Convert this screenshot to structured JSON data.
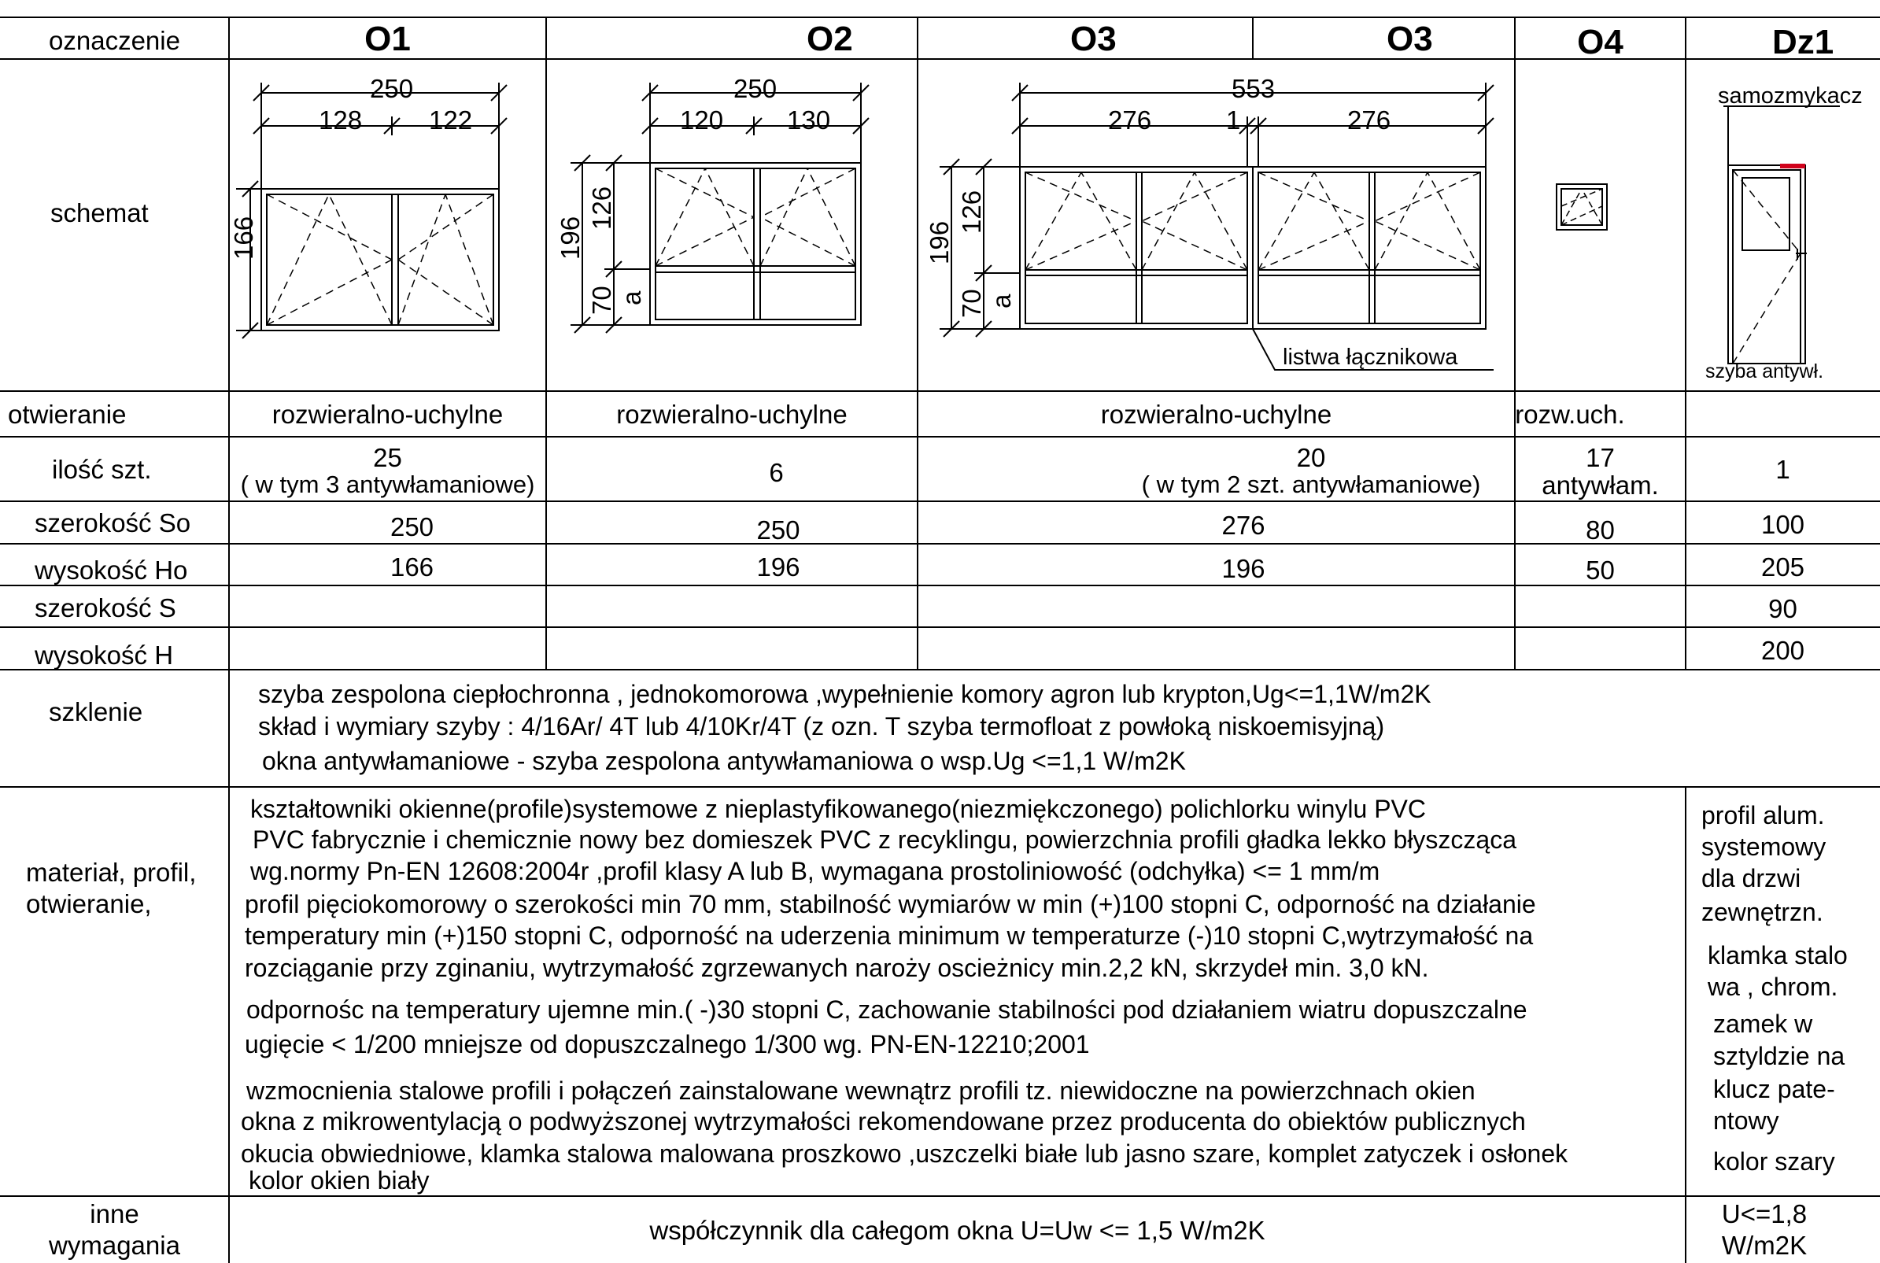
{
  "row_labels": {
    "oznaczenie": "oznaczenie",
    "schemat": "schemat",
    "otwieranie": "otwieranie",
    "ilosc": "ilość szt.",
    "szerokosc_so": "szerokość So",
    "wysokosc_ho": "wysokość Ho",
    "szerokosc_s": "szerokość S",
    "wysokosc_h": "wysokość H",
    "szklenie": "szklenie",
    "material_1": "materiał, profil,",
    "material_2": "otwieranie,",
    "inne_1": "inne",
    "inne_2": "wymagania"
  },
  "columns": {
    "o1": {
      "mark": "O1",
      "opening": "rozwieralno-uchylne",
      "qty": "25",
      "qty_note": "( w tym 3 antywłamaniowe)",
      "width_so": "250",
      "height_ho": "166",
      "dims": {
        "total": "250",
        "left": "128",
        "right": "122",
        "height": "166"
      }
    },
    "o2": {
      "mark": "O2",
      "opening": "rozwieralno-uchylne",
      "qty": "6",
      "width_so": "250",
      "height_ho": "196",
      "dims": {
        "total": "250",
        "left": "120",
        "right": "130",
        "height": "196",
        "upper": "126",
        "lower": "70",
        "lower_label": "a"
      }
    },
    "o3": {
      "mark_left": "O3",
      "mark_right": "O3",
      "opening": "rozwieralno-uchylne",
      "qty": "20",
      "qty_note": "( w tym 2 szt. antywłamaniowe)",
      "width_so": "276",
      "height_ho": "196",
      "dims": {
        "total": "553",
        "left": "276",
        "gap": "1",
        "right": "276",
        "height": "196",
        "upper": "126",
        "lower": "70",
        "lower_label": "a"
      },
      "connector_label": "listwa łącznikowa"
    },
    "o4": {
      "mark": "O4",
      "opening": "rozw.uch.",
      "qty": "17",
      "qty_note": "antywłam.",
      "width_so": "80",
      "height_ho": "50"
    },
    "dz1": {
      "mark": "Dz1",
      "qty": "1",
      "width_so": "100",
      "height_ho": "205",
      "width_s": "90",
      "height_h": "200",
      "closer_label": "samozmykacz",
      "glass_label": "szyba antywł.",
      "material_lines": [
        "profil alum.",
        "systemowy",
        "dla drzwi",
        "zewnętrzn.",
        "klamka stalo",
        "wa , chrom.",
        "zamek w",
        "sztyldzie na",
        "klucz pate-",
        "ntowy",
        "kolor szary"
      ],
      "other_lines": [
        "U<=1,8",
        "W/m2K"
      ]
    }
  },
  "glazing_lines": [
    "szyba zespolona ciepłochronna , jednokomorowa ,wypełnienie komory agron  lub krypton,Ug<=1,1W/m2K",
    "skład i wymiary szyby : 4/16Ar/ 4T lub 4/10Kr/4T (z ozn. T szyba termofloat z powłoką niskoemisyjną)",
    "okna antywłamaniowe - szyba zespolona antywłamaniowa    o wsp.Ug <=1,1 W/m2K"
  ],
  "material_lines": [
    "kształtowniki okienne(profile)systemowe z nieplastyfikowanego(niezmiękczonego) polichlorku winylu PVC",
    "PVC fabrycznie i chemicznie nowy bez domieszek PVC z recyklingu, powierzchnia profili gładka lekko błyszcząca",
    "wg.normy Pn-EN 12608:2004r ,profil klasy A lub B, wymagana prostoliniowość (odchyłka) <= 1 mm/m",
    "profil pięciokomorowy o szerokości min 70 mm, stabilność wymiarów w min (+)100 stopni C, odporność na działanie",
    "temperatury min (+)150 stopni C, odporność na uderzenia minimum w temperaturze (-)10 stopni C,wytrzymałość na",
    "rozciąganie  przy zginaniu, wytrzymałość zgrzewanych naroży oscieżnicy min.2,2 kN, skrzydeł min. 3,0 kN.",
    "odpornośc na temperatury ujemne min.( -)30 stopni C, zachowanie stabilności pod  działaniem wiatru dopuszczalne",
    "ugięcie < 1/200 mniejsze od dopuszczalnego 1/300 wg. PN-EN-12210;2001",
    "wzmocnienia stalowe profili i połączeń zainstalowane wewnątrz profili tz. niewidoczne na powierzchnach okien",
    "okna z mikrowentylacją o podwyższonej wytrzymałości rekomendowane przez producenta do obiektów publicznych",
    "okucia obwiedniowe, klamka stalowa malowana proszkowo ,uszczelki białe lub jasno szare, komplet zatyczek i osłonek",
    "kolor okien biały"
  ],
  "other_requirement": "współczynnik dla całegom okna U=Uw <= 1,5 W/m2K",
  "colors": {
    "line": "#000000",
    "closer": "#d0021b"
  }
}
